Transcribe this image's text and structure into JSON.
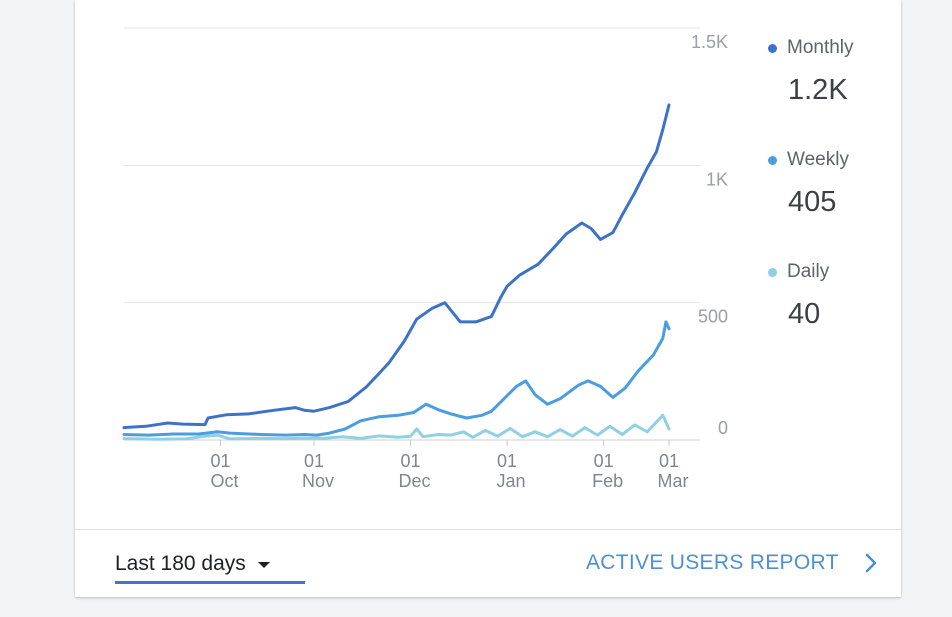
{
  "chart_data": {
    "type": "line",
    "title": "",
    "xlabel": "",
    "ylabel": "",
    "ylim": [
      0,
      1500
    ],
    "ytick_values": [
      0,
      500,
      1000,
      1500
    ],
    "ytick_labels": [
      "0",
      "500",
      "1K",
      "1.5K"
    ],
    "x_domain_days": [
      0,
      183
    ],
    "x_ticks": [
      {
        "day": 31,
        "day_label": "01",
        "month_label": "Oct"
      },
      {
        "day": 61,
        "day_label": "01",
        "month_label": "Nov"
      },
      {
        "day": 92,
        "day_label": "01",
        "month_label": "Dec"
      },
      {
        "day": 123,
        "day_label": "01",
        "month_label": "Jan"
      },
      {
        "day": 154,
        "day_label": "01",
        "month_label": "Feb"
      },
      {
        "day": 175,
        "day_label": "01",
        "month_label": "Mar"
      }
    ],
    "series": [
      {
        "name": "Monthly",
        "color": "#3d72c8",
        "points": [
          [
            0,
            45
          ],
          [
            7,
            50
          ],
          [
            14,
            62
          ],
          [
            19,
            58
          ],
          [
            26,
            56
          ],
          [
            27,
            80
          ],
          [
            33,
            92
          ],
          [
            40,
            95
          ],
          [
            48,
            108
          ],
          [
            55,
            118
          ],
          [
            58,
            108
          ],
          [
            61,
            105
          ],
          [
            66,
            118
          ],
          [
            72,
            140
          ],
          [
            78,
            195
          ],
          [
            85,
            280
          ],
          [
            90,
            360
          ],
          [
            94,
            440
          ],
          [
            99,
            480
          ],
          [
            103,
            500
          ],
          [
            108,
            430
          ],
          [
            113,
            430
          ],
          [
            118,
            450
          ],
          [
            121,
            520
          ],
          [
            123,
            560
          ],
          [
            127,
            600
          ],
          [
            133,
            640
          ],
          [
            138,
            700
          ],
          [
            142,
            750
          ],
          [
            147,
            790
          ],
          [
            150,
            770
          ],
          [
            153,
            730
          ],
          [
            157,
            755
          ],
          [
            160,
            820
          ],
          [
            164,
            900
          ],
          [
            168,
            990
          ],
          [
            171,
            1050
          ],
          [
            173,
            1130
          ],
          [
            175,
            1220
          ]
        ]
      },
      {
        "name": "Weekly",
        "color": "#4b9de0",
        "points": [
          [
            0,
            20
          ],
          [
            8,
            18
          ],
          [
            16,
            22
          ],
          [
            24,
            22
          ],
          [
            27,
            26
          ],
          [
            30,
            30
          ],
          [
            34,
            25
          ],
          [
            44,
            20
          ],
          [
            52,
            18
          ],
          [
            58,
            20
          ],
          [
            62,
            18
          ],
          [
            66,
            25
          ],
          [
            71,
            40
          ],
          [
            76,
            70
          ],
          [
            82,
            85
          ],
          [
            88,
            90
          ],
          [
            93,
            100
          ],
          [
            97,
            130
          ],
          [
            101,
            110
          ],
          [
            105,
            95
          ],
          [
            110,
            80
          ],
          [
            115,
            90
          ],
          [
            118,
            105
          ],
          [
            122,
            150
          ],
          [
            126,
            195
          ],
          [
            129,
            215
          ],
          [
            132,
            165
          ],
          [
            136,
            130
          ],
          [
            140,
            150
          ],
          [
            146,
            200
          ],
          [
            149,
            215
          ],
          [
            153,
            195
          ],
          [
            157,
            155
          ],
          [
            161,
            190
          ],
          [
            165,
            250
          ],
          [
            170,
            310
          ],
          [
            173,
            370
          ],
          [
            174,
            430
          ],
          [
            175,
            405
          ]
        ]
      },
      {
        "name": "Daily",
        "color": "#8fd0e4",
        "points": [
          [
            0,
            5
          ],
          [
            10,
            3
          ],
          [
            20,
            4
          ],
          [
            26,
            14
          ],
          [
            30,
            18
          ],
          [
            34,
            4
          ],
          [
            44,
            6
          ],
          [
            52,
            5
          ],
          [
            58,
            7
          ],
          [
            64,
            6
          ],
          [
            70,
            12
          ],
          [
            76,
            6
          ],
          [
            82,
            15
          ],
          [
            88,
            10
          ],
          [
            92,
            14
          ],
          [
            94,
            40
          ],
          [
            96,
            12
          ],
          [
            101,
            20
          ],
          [
            105,
            18
          ],
          [
            109,
            30
          ],
          [
            112,
            10
          ],
          [
            116,
            35
          ],
          [
            120,
            14
          ],
          [
            124,
            42
          ],
          [
            128,
            12
          ],
          [
            132,
            30
          ],
          [
            136,
            12
          ],
          [
            140,
            38
          ],
          [
            144,
            14
          ],
          [
            148,
            45
          ],
          [
            152,
            18
          ],
          [
            156,
            50
          ],
          [
            160,
            20
          ],
          [
            164,
            55
          ],
          [
            168,
            30
          ],
          [
            171,
            65
          ],
          [
            173,
            90
          ],
          [
            175,
            40
          ]
        ]
      }
    ]
  },
  "legend": [
    {
      "name": "Monthly",
      "value": "1.2K",
      "color": "#3d72c8"
    },
    {
      "name": "Weekly",
      "value": "405",
      "color": "#4b9de0"
    },
    {
      "name": "Daily",
      "value": "40",
      "color": "#8fd0e4"
    }
  ],
  "footer": {
    "range_label": "Last 180 days",
    "report_label": "ACTIVE USERS REPORT",
    "accent_color": "#3b78d2"
  }
}
